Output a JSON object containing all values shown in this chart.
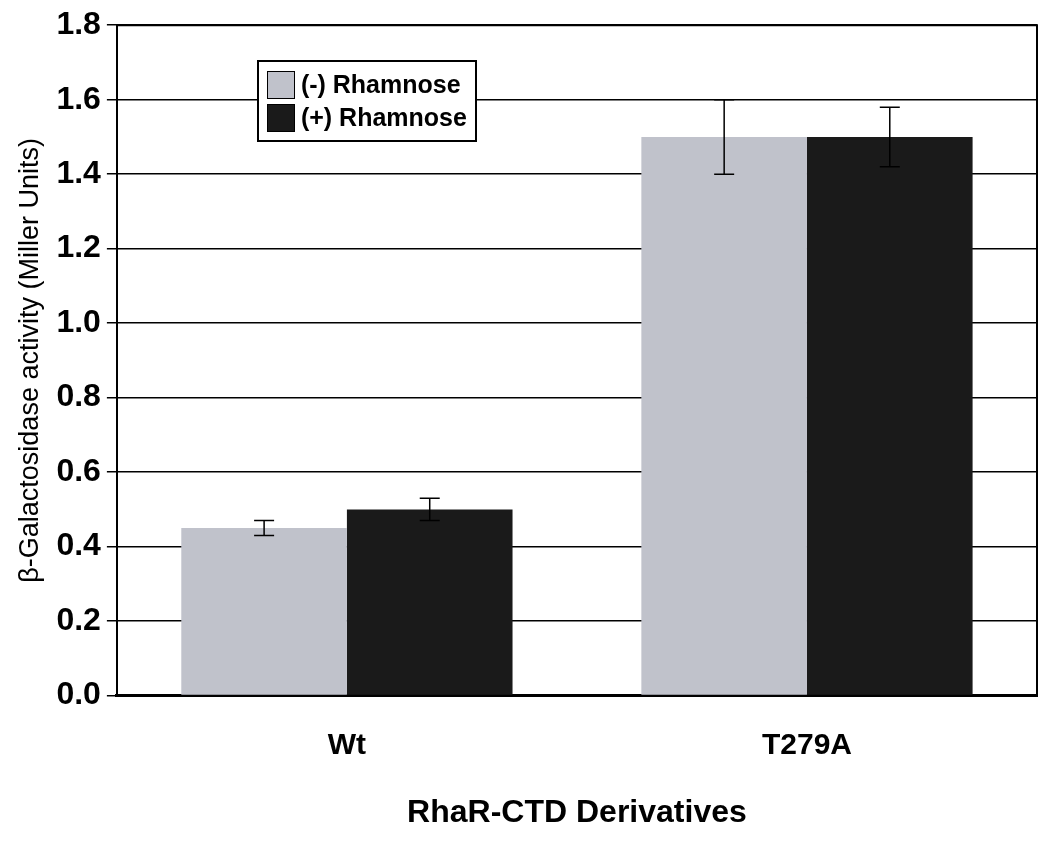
{
  "chart_data": {
    "type": "bar",
    "xlabel": "RhaR-CTD Derivatives",
    "ylabel": "β-Galactosidase activity (Miller Units)",
    "categories": [
      "Wt",
      "T279A"
    ],
    "series": [
      {
        "name": "(-) Rhamnose",
        "color": "#c0c2cb",
        "values": [
          0.45,
          1.5
        ],
        "errors": [
          0.02,
          0.1
        ]
      },
      {
        "name": "(+) Rhamnose",
        "color": "#1a1a1a",
        "values": [
          0.5,
          1.5
        ],
        "errors": [
          0.03,
          0.08
        ]
      }
    ],
    "ylim": [
      0,
      1.8
    ],
    "yticks": [
      {
        "value": 0,
        "label": "0.0"
      },
      0.2,
      0.4,
      0.6,
      0.8,
      {
        "value": 1,
        "label": "1.0"
      },
      1.2,
      1.4,
      1.6,
      1.8
    ],
    "grid": "y",
    "legend": "top left"
  }
}
